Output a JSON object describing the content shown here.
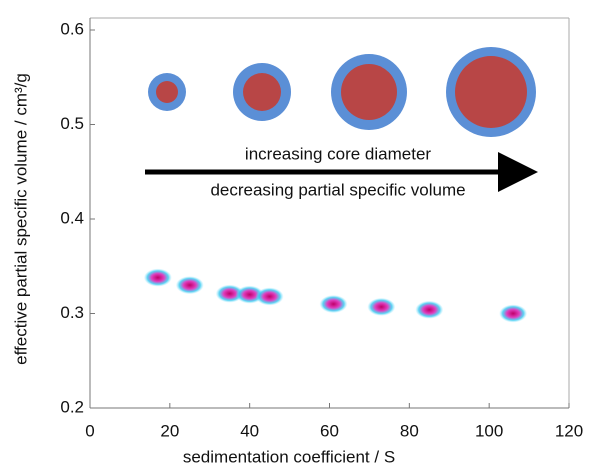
{
  "chart_data": {
    "type": "scatter",
    "xlabel": "sedimentation coefficient / S",
    "ylabel": "effective partial specific volume / cm³/g",
    "x": [
      17,
      25,
      35,
      40,
      45,
      61,
      73,
      85,
      106
    ],
    "values": [
      0.338,
      0.33,
      0.321,
      0.32,
      0.318,
      0.31,
      0.307,
      0.304,
      0.3
    ],
    "xlim": [
      0,
      120
    ],
    "xticks": [
      0,
      20,
      40,
      60,
      80,
      100,
      120
    ],
    "ylim": [
      0.2,
      0.6
    ],
    "yticks": [
      0.2,
      0.3,
      0.4,
      0.5,
      0.6
    ],
    "annotations": [
      "increasing core diameter",
      "decreasing partial specific volume"
    ]
  }
}
